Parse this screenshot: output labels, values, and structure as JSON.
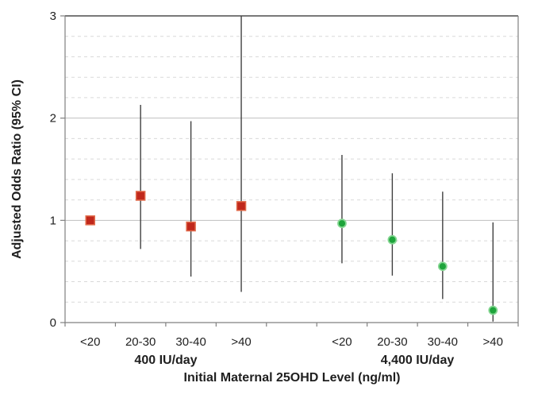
{
  "chart_data": {
    "type": "scatter",
    "subtype": "forest-plot-points-with-95ci-error-bars",
    "title": "",
    "ylabel": "Adjusted Odds Ratio (95% CI)",
    "xlabel": "Initial Maternal 25OHD Level (ng/ml)",
    "ylim": [
      0,
      3
    ],
    "y_ticks": [
      "0",
      "1",
      "2",
      "3"
    ],
    "y_minor_grid_step": 0.2,
    "grid": "solid major lines at 1 and 2, dashed minor lines every 0.2",
    "legend_position": "none",
    "categories": [
      "<20",
      "20-30",
      "30-40",
      ">40"
    ],
    "groups": [
      {
        "label": "400 IU/day",
        "marker": "square",
        "marker_fill": "#c0281c",
        "marker_border": "#e16a4a",
        "points": [
          {
            "category": "<20",
            "odds_ratio": 1.0,
            "ci_low": null,
            "ci_high": null
          },
          {
            "category": "20-30",
            "odds_ratio": 1.24,
            "ci_low": 0.72,
            "ci_high": 2.13
          },
          {
            "category": "30-40",
            "odds_ratio": 0.94,
            "ci_low": 0.45,
            "ci_high": 1.97
          },
          {
            "category": ">40",
            "odds_ratio": 1.14,
            "ci_low": 0.3,
            "ci_high": 3.0,
            "ci_high_clipped_at_axis_max": true
          }
        ]
      },
      {
        "label": "4,400 IU/day",
        "marker": "circle",
        "marker_fill": "#1ea43b",
        "marker_border": "#86d793",
        "points": [
          {
            "category": "<20",
            "odds_ratio": 0.97,
            "ci_low": 0.58,
            "ci_high": 1.64
          },
          {
            "category": "20-30",
            "odds_ratio": 0.81,
            "ci_low": 0.46,
            "ci_high": 1.46
          },
          {
            "category": "30-40",
            "odds_ratio": 0.55,
            "ci_low": 0.23,
            "ci_high": 1.28
          },
          {
            "category": ">40",
            "odds_ratio": 0.12,
            "ci_low": 0.01,
            "ci_high": 0.98
          }
        ]
      }
    ],
    "style": {
      "error_bar_color": "#404040",
      "axis_line_color": "#808080",
      "plot_top_border_color": "#4d4d4d",
      "major_grid_color": "#bfbfbf",
      "minor_grid_color": "#d9d9d9",
      "text_color": "#1f1f1f",
      "background": "#ffffff"
    }
  }
}
